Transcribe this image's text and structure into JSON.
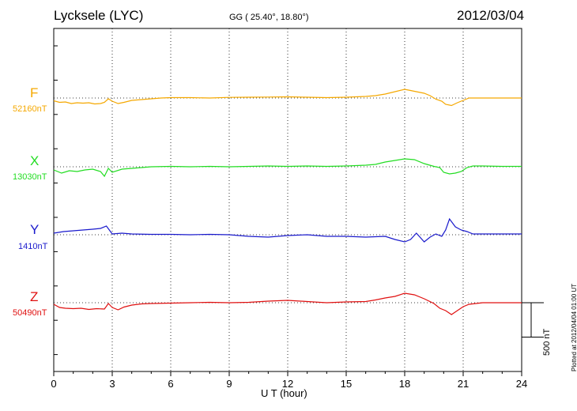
{
  "header": {
    "station": "Lycksele (LYC)",
    "coords": "GG ( 25.40°,  18.80°)",
    "date": "2012/03/04"
  },
  "footer": {
    "plotted": "Plotted at 2012/04/04 01:00 UT",
    "scale": "500 nT"
  },
  "chart_data": {
    "type": "line",
    "title": "Lycksele (LYC)",
    "xlabel": "U T (hour)",
    "ylabel": "",
    "xlim": [
      0,
      24
    ],
    "xticks": [
      0,
      3,
      6,
      9,
      12,
      15,
      18,
      21,
      24
    ],
    "grid": true,
    "scale_bar_nT": 500,
    "series": [
      {
        "name": "F",
        "baseline": "52160nT",
        "color": "#f5a800",
        "x": [
          0,
          0.3,
          0.6,
          0.9,
          1.2,
          1.5,
          1.8,
          2.1,
          2.4,
          2.6,
          2.8,
          3.0,
          3.3,
          3.6,
          4.0,
          4.5,
          5.0,
          5.5,
          6,
          7,
          8,
          9,
          10,
          11,
          12,
          13,
          14,
          15,
          16,
          16.5,
          17,
          17.5,
          18,
          18.3,
          18.6,
          19,
          19.3,
          19.6,
          19.9,
          20.1,
          20.4,
          20.7,
          21,
          21.3,
          22,
          23,
          24
        ],
        "y": [
          -35,
          -55,
          -50,
          -70,
          -60,
          -65,
          -60,
          -75,
          -70,
          -55,
          -10,
          -40,
          -70,
          -55,
          -30,
          -20,
          -10,
          0,
          5,
          5,
          0,
          8,
          10,
          12,
          15,
          10,
          5,
          10,
          20,
          30,
          50,
          80,
          110,
          95,
          80,
          60,
          30,
          -15,
          -40,
          -80,
          -95,
          -60,
          -30,
          0,
          0,
          0,
          0
        ]
      },
      {
        "name": "X",
        "baseline": "13030nT",
        "color": "#22dd22",
        "x": [
          0,
          0.4,
          0.8,
          1.2,
          1.6,
          2.0,
          2.4,
          2.6,
          2.8,
          3.0,
          3.5,
          4,
          5,
          6,
          7,
          8,
          9,
          10,
          11,
          12,
          13,
          14,
          15,
          16,
          16.5,
          17,
          17.5,
          18,
          18.5,
          19,
          19.5,
          19.8,
          20,
          20.3,
          20.6,
          20.9,
          21.2,
          21.5,
          22,
          23,
          24
        ],
        "y": [
          -40,
          -80,
          -50,
          -60,
          -40,
          -30,
          -60,
          -120,
          -20,
          -70,
          -30,
          -20,
          0,
          5,
          0,
          5,
          0,
          5,
          10,
          5,
          10,
          5,
          10,
          20,
          30,
          60,
          80,
          100,
          90,
          40,
          5,
          -10,
          -70,
          -90,
          -80,
          -60,
          -10,
          10,
          10,
          5,
          5
        ]
      },
      {
        "name": "Y",
        "baseline": "1410nT",
        "color": "#1a1acc",
        "x": [
          0,
          0.5,
          1,
          1.5,
          2,
          2.4,
          2.7,
          3.0,
          3.5,
          4,
          5,
          6,
          7,
          8,
          9,
          10,
          11,
          12,
          13,
          14,
          15,
          16,
          17,
          17.5,
          18,
          18.3,
          18.6,
          19,
          19.3,
          19.6,
          19.9,
          20.1,
          20.3,
          20.6,
          20.9,
          21.2,
          21.5,
          22,
          23,
          24
        ],
        "y": [
          20,
          40,
          50,
          60,
          70,
          80,
          110,
          10,
          20,
          10,
          5,
          5,
          0,
          5,
          0,
          -20,
          -30,
          -10,
          0,
          -20,
          -20,
          -30,
          -20,
          -60,
          -90,
          -60,
          20,
          -90,
          -30,
          10,
          -20,
          60,
          200,
          100,
          60,
          40,
          10,
          10,
          10,
          10
        ]
      },
      {
        "name": "Z",
        "baseline": "50490nT",
        "color": "#e01010",
        "x": [
          0,
          0.3,
          0.6,
          1,
          1.4,
          1.8,
          2.2,
          2.6,
          2.8,
          3.0,
          3.3,
          3.6,
          4,
          4.5,
          5,
          6,
          7,
          8,
          9,
          10,
          11,
          12,
          13,
          14,
          15,
          16,
          16.5,
          17,
          17.5,
          18,
          18.5,
          19,
          19.5,
          19.8,
          20.1,
          20.4,
          20.7,
          21,
          21.3,
          22,
          23,
          24
        ],
        "y": [
          -20,
          -60,
          -70,
          -75,
          -70,
          -85,
          -75,
          -80,
          -10,
          -60,
          -90,
          -55,
          -30,
          -15,
          -10,
          -5,
          0,
          5,
          0,
          5,
          20,
          30,
          15,
          0,
          10,
          15,
          35,
          60,
          80,
          120,
          100,
          50,
          -10,
          -70,
          -100,
          -150,
          -100,
          -50,
          -20,
          0,
          0,
          0
        ]
      }
    ]
  }
}
